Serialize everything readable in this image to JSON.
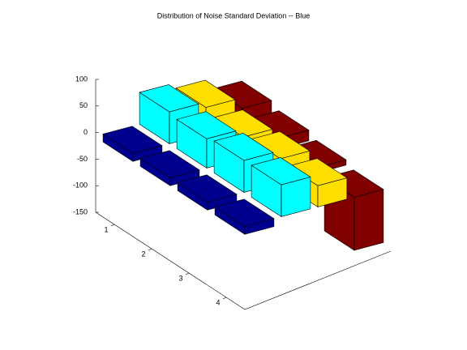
{
  "chart_data": {
    "type": "bar3",
    "title": "Distribution of Noise Standard Deviation -- Blue",
    "categories": [
      "1",
      "2",
      "3",
      "4"
    ],
    "series": [
      {
        "color": "#00008f",
        "values": [
          -15,
          -15,
          -15,
          -15
        ]
      },
      {
        "color": "#00ffff",
        "values": [
          60,
          55,
          60,
          60
        ]
      },
      {
        "color": "#ffdf00",
        "values": [
          50,
          40,
          45,
          40
        ]
      },
      {
        "color": "#800000",
        "values": [
          30,
          20,
          10,
          -100
        ]
      }
    ],
    "zlim": [
      -150,
      100
    ],
    "zticks": [
      -150,
      -100,
      -50,
      0,
      50,
      100
    ]
  }
}
